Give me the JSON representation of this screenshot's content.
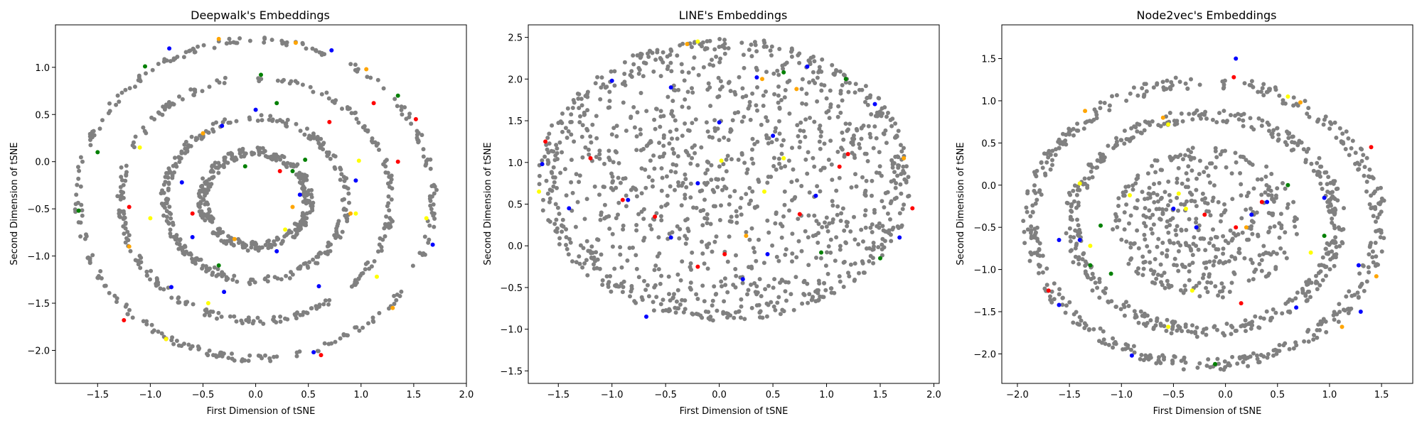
{
  "chart_data": [
    {
      "type": "scatter",
      "title": "Deepwalk's Embeddings",
      "xlabel": "First Dimension of tSNE",
      "ylabel": "Second Dimension of tSNE",
      "xlim": [
        -1.9,
        2.0
      ],
      "ylim": [
        -2.35,
        1.45
      ],
      "xticks": [
        -1.5,
        -1.0,
        -0.5,
        0.0,
        0.5,
        1.0,
        1.5,
        2.0
      ],
      "xtick_labels": [
        "−1.5",
        "−1.0",
        "−0.5",
        "0.0",
        "0.5",
        "1.0",
        "1.5",
        "2.0"
      ],
      "yticks": [
        -2.0,
        -1.5,
        -1.0,
        -0.5,
        0.0,
        0.5,
        1.0
      ],
      "ytick_labels": [
        "−2.0",
        "−1.5",
        "−1.0",
        "−0.5",
        "0.0",
        "0.5",
        "1.0"
      ],
      "shape": {
        "kind": "rings",
        "cx": 0.0,
        "cy": -0.4,
        "rings": [
          [
            1.65,
            1.72
          ],
          [
            1.25,
            1.32
          ],
          [
            0.82,
            0.9
          ],
          [
            0.45,
            0.55
          ]
        ],
        "count": 1100,
        "seed": 11
      },
      "colored_points": [
        {
          "color": "blue",
          "points": [
            [
              -0.82,
              1.2
            ],
            [
              -0.32,
              0.38
            ],
            [
              0.72,
              1.18
            ],
            [
              0.95,
              -0.2
            ],
            [
              -0.7,
              -0.22
            ],
            [
              -0.3,
              -1.38
            ],
            [
              0.55,
              -2.02
            ],
            [
              -0.8,
              -1.33
            ],
            [
              0.6,
              -1.32
            ],
            [
              1.68,
              -0.88
            ],
            [
              -0.6,
              -0.8
            ],
            [
              0.42,
              -0.35
            ],
            [
              0.0,
              0.55
            ],
            [
              0.2,
              -0.95
            ]
          ]
        },
        {
          "color": "green",
          "points": [
            [
              -1.05,
              1.01
            ],
            [
              0.05,
              0.92
            ],
            [
              -1.5,
              0.1
            ],
            [
              -1.68,
              -0.52
            ],
            [
              0.2,
              0.62
            ],
            [
              0.47,
              0.02
            ],
            [
              1.35,
              0.7
            ],
            [
              -0.35,
              -1.1
            ],
            [
              0.35,
              -0.1
            ],
            [
              -0.1,
              -0.05
            ]
          ]
        },
        {
          "color": "red",
          "points": [
            [
              0.62,
              -2.05
            ],
            [
              -1.2,
              -0.48
            ],
            [
              1.12,
              0.62
            ],
            [
              1.52,
              0.45
            ],
            [
              -1.25,
              -1.68
            ],
            [
              -0.85,
              -1.88
            ],
            [
              0.23,
              -0.1
            ],
            [
              0.7,
              0.42
            ],
            [
              1.35,
              0.0
            ],
            [
              -0.6,
              -0.55
            ]
          ]
        },
        {
          "color": "yellow",
          "points": [
            [
              1.15,
              -1.22
            ],
            [
              0.98,
              0.01
            ],
            [
              -1.1,
              0.15
            ],
            [
              -0.85,
              -1.88
            ],
            [
              0.95,
              -0.55
            ],
            [
              -0.45,
              -1.5
            ],
            [
              1.62,
              -0.6
            ],
            [
              -1.0,
              -0.6
            ],
            [
              0.28,
              -0.72
            ]
          ]
        },
        {
          "color": "orange",
          "points": [
            [
              -0.35,
              1.3
            ],
            [
              0.38,
              1.26
            ],
            [
              1.05,
              0.98
            ],
            [
              1.3,
              -1.55
            ],
            [
              -1.2,
              -0.9
            ],
            [
              -0.2,
              -0.82
            ],
            [
              0.9,
              -0.55
            ],
            [
              0.35,
              -0.48
            ],
            [
              -0.5,
              0.3
            ]
          ]
        }
      ]
    },
    {
      "type": "scatter",
      "title": "LINE's Embeddings",
      "xlabel": "First Dimension of tSNE",
      "ylabel": "Second Dimension of tSNE",
      "xlim": [
        -1.78,
        2.05
      ],
      "ylim": [
        -1.65,
        2.65
      ],
      "xticks": [
        -1.5,
        -1.0,
        -0.5,
        0.0,
        0.5,
        1.0,
        1.5,
        2.0
      ],
      "xtick_labels": [
        "−1.5",
        "−1.0",
        "−0.5",
        "0.0",
        "0.5",
        "1.0",
        "1.5",
        "2.0"
      ],
      "yticks": [
        -1.5,
        -1.0,
        -0.5,
        0.0,
        0.5,
        1.0,
        1.5,
        2.0,
        2.5
      ],
      "ytick_labels": [
        "−1.5",
        "−1.0",
        "−0.5",
        "0.0",
        "0.5",
        "1.0",
        "1.5",
        "2.0",
        "2.5"
      ],
      "shape": {
        "kind": "blob",
        "cx": 0.05,
        "cy": 0.8,
        "rx": 1.75,
        "ry": 1.7,
        "count": 1250,
        "seed": 23
      },
      "colored_points": [
        {
          "color": "blue",
          "points": [
            [
              -1.65,
              0.98
            ],
            [
              -1.0,
              1.98
            ],
            [
              -0.45,
              1.9
            ],
            [
              0.35,
              2.02
            ],
            [
              0.82,
              2.15
            ],
            [
              0.5,
              1.32
            ],
            [
              -0.2,
              0.75
            ],
            [
              0.0,
              1.48
            ],
            [
              -0.85,
              0.55
            ],
            [
              -0.45,
              0.1
            ],
            [
              0.45,
              -0.1
            ],
            [
              1.68,
              0.1
            ],
            [
              -0.68,
              -0.85
            ],
            [
              0.22,
              -0.4
            ],
            [
              0.9,
              0.6
            ],
            [
              1.45,
              1.7
            ],
            [
              -1.4,
              0.45
            ]
          ]
        },
        {
          "color": "red",
          "points": [
            [
              -1.62,
              1.25
            ],
            [
              -0.9,
              0.55
            ],
            [
              1.12,
              0.95
            ],
            [
              1.2,
              1.1
            ],
            [
              0.05,
              -0.1
            ],
            [
              -0.2,
              -0.25
            ],
            [
              0.75,
              0.38
            ],
            [
              -1.2,
              1.05
            ],
            [
              1.8,
              0.45
            ],
            [
              -0.6,
              0.35
            ]
          ]
        },
        {
          "color": "yellow",
          "points": [
            [
              -0.2,
              2.45
            ],
            [
              0.02,
              1.02
            ],
            [
              -1.68,
              0.65
            ],
            [
              0.42,
              0.65
            ],
            [
              0.6,
              1.05
            ]
          ]
        },
        {
          "color": "orange",
          "points": [
            [
              0.25,
              0.12
            ],
            [
              0.72,
              1.88
            ],
            [
              1.72,
              1.05
            ],
            [
              0.4,
              2.0
            ],
            [
              -0.3,
              2.42
            ]
          ]
        },
        {
          "color": "green",
          "points": [
            [
              0.6,
              2.08
            ],
            [
              1.18,
              2.0
            ],
            [
              1.5,
              -0.15
            ],
            [
              0.95,
              -0.08
            ]
          ]
        }
      ]
    },
    {
      "type": "scatter",
      "title": "Node2vec's Embeddings",
      "xlabel": "First Dimension of tSNE",
      "ylabel": "Second Dimension of tSNE",
      "xlim": [
        -2.15,
        1.8
      ],
      "ylim": [
        -2.35,
        1.9
      ],
      "xticks": [
        -2.0,
        -1.5,
        -1.0,
        -0.5,
        0.0,
        0.5,
        1.0,
        1.5
      ],
      "xtick_labels": [
        "−2.0",
        "−1.5",
        "−1.0",
        "−0.5",
        "0.0",
        "0.5",
        "1.0",
        "1.5"
      ],
      "yticks": [
        -2.0,
        -1.5,
        -1.0,
        -0.5,
        0.0,
        0.5,
        1.0,
        1.5
      ],
      "ytick_labels": [
        "−2.0",
        "−1.5",
        "−1.0",
        "−0.5",
        "0.0",
        "0.5",
        "1.0",
        "1.5"
      ],
      "shape": {
        "kind": "rings",
        "cx": -0.2,
        "cy": -0.45,
        "rings": [
          [
            1.6,
            1.75
          ],
          [
            1.2,
            1.35
          ]
        ],
        "fill": 0.6,
        "fill_r": 0.9,
        "count": 1300,
        "seed": 37
      },
      "colored_points": [
        {
          "color": "blue",
          "points": [
            [
              -1.6,
              -0.65
            ],
            [
              -1.4,
              -0.65
            ],
            [
              -0.9,
              -2.02
            ],
            [
              0.4,
              -0.2
            ],
            [
              0.25,
              -0.35
            ],
            [
              -0.28,
              -0.5
            ],
            [
              0.95,
              -0.15
            ],
            [
              1.28,
              -0.95
            ],
            [
              -1.6,
              -1.42
            ],
            [
              0.68,
              -1.45
            ],
            [
              1.3,
              -1.5
            ],
            [
              -0.5,
              -0.28
            ],
            [
              0.1,
              1.5
            ]
          ]
        },
        {
          "color": "red",
          "points": [
            [
              -1.7,
              -1.25
            ],
            [
              0.35,
              -0.2
            ],
            [
              0.1,
              -0.5
            ],
            [
              0.15,
              -1.4
            ],
            [
              -0.2,
              -0.35
            ],
            [
              0.08,
              1.28
            ],
            [
              1.4,
              0.45
            ]
          ]
        },
        {
          "color": "yellow",
          "points": [
            [
              -1.4,
              0.02
            ],
            [
              -1.3,
              -0.72
            ],
            [
              -0.55,
              0.72
            ],
            [
              -0.92,
              -0.12
            ],
            [
              -0.45,
              -0.1
            ],
            [
              -0.38,
              -0.28
            ],
            [
              -0.32,
              -1.25
            ],
            [
              -0.55,
              -1.68
            ],
            [
              0.6,
              1.05
            ],
            [
              0.82,
              -0.8
            ]
          ]
        },
        {
          "color": "orange",
          "points": [
            [
              0.72,
              0.98
            ],
            [
              -1.35,
              0.88
            ],
            [
              0.2,
              -0.5
            ],
            [
              -0.6,
              0.8
            ],
            [
              1.12,
              -1.68
            ],
            [
              1.45,
              -1.08
            ]
          ]
        },
        {
          "color": "green",
          "points": [
            [
              -1.2,
              -0.48
            ],
            [
              -1.1,
              -1.05
            ],
            [
              -1.3,
              -0.95
            ],
            [
              0.6,
              0.0
            ],
            [
              -0.1,
              -2.12
            ],
            [
              0.95,
              -0.6
            ]
          ]
        }
      ]
    }
  ]
}
